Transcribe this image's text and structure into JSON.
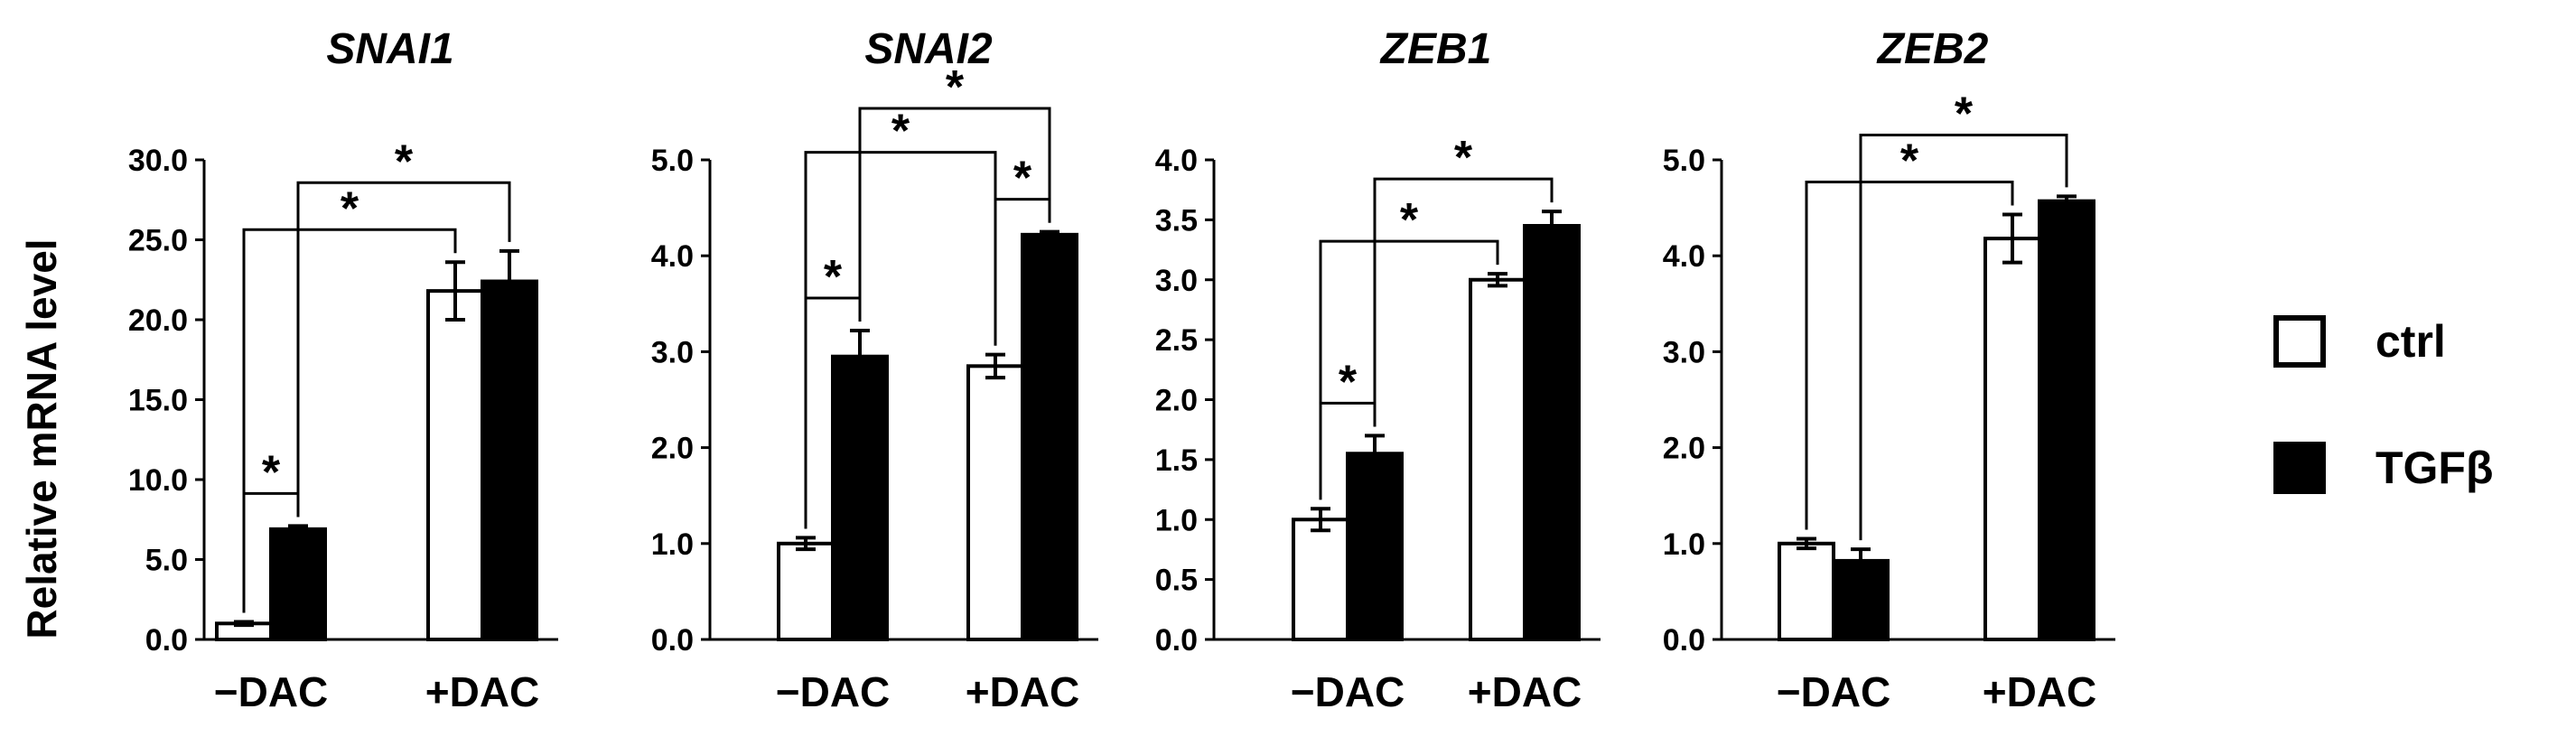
{
  "chart_data": [
    {
      "type": "bar",
      "title": "SNAI1",
      "ylabel": "Relative mRNA level",
      "xlabel": "",
      "ylim": [
        0,
        30
      ],
      "yticks": [
        "0.0",
        "5.0",
        "10.0",
        "15.0",
        "20.0",
        "25.0",
        "30.0"
      ],
      "categories": [
        "−DAC",
        "+DAC"
      ],
      "series": [
        {
          "name": "ctrl",
          "values": [
            1.0,
            21.8
          ],
          "errors": [
            0.1,
            1.8
          ]
        },
        {
          "name": "TGFβ",
          "values": [
            6.9,
            22.4
          ],
          "errors": [
            0.2,
            1.9
          ]
        }
      ],
      "significance": [
        {
          "from": [
            0,
            0
          ],
          "to": [
            0,
            1
          ],
          "label": "*"
        },
        {
          "from": [
            0,
            0
          ],
          "to": [
            1,
            0
          ],
          "label": "*"
        },
        {
          "from": [
            0,
            1
          ],
          "to": [
            1,
            1
          ],
          "label": "*"
        }
      ]
    },
    {
      "type": "bar",
      "title": "SNAI2",
      "ylim": [
        0,
        5
      ],
      "yticks": [
        "0.0",
        "1.0",
        "2.0",
        "3.0",
        "4.0",
        "5.0"
      ],
      "categories": [
        "−DAC",
        "+DAC"
      ],
      "series": [
        {
          "name": "ctrl",
          "values": [
            1.0,
            2.85
          ],
          "errors": [
            0.06,
            0.12
          ]
        },
        {
          "name": "TGFβ",
          "values": [
            2.95,
            4.22
          ],
          "errors": [
            0.27,
            0.03
          ]
        }
      ],
      "significance": [
        {
          "from": [
            0,
            0
          ],
          "to": [
            0,
            1
          ],
          "label": "*"
        },
        {
          "from": [
            0,
            0
          ],
          "to": [
            1,
            0
          ],
          "label": "*"
        },
        {
          "from": [
            1,
            0
          ],
          "to": [
            1,
            1
          ],
          "label": "*"
        },
        {
          "from": [
            0,
            1
          ],
          "to": [
            1,
            1
          ],
          "label": "*"
        }
      ]
    },
    {
      "type": "bar",
      "title": "ZEB1",
      "ylim": [
        0,
        4
      ],
      "yticks": [
        "0.0",
        "0.5",
        "1.0",
        "1.5",
        "2.0",
        "2.5",
        "3.0",
        "3.5",
        "4.0"
      ],
      "categories": [
        "−DAC",
        "+DAC"
      ],
      "series": [
        {
          "name": "ctrl",
          "values": [
            1.0,
            3.0
          ],
          "errors": [
            0.09,
            0.05
          ]
        },
        {
          "name": "TGFβ",
          "values": [
            1.55,
            3.45
          ],
          "errors": [
            0.15,
            0.12
          ]
        }
      ],
      "significance": [
        {
          "from": [
            0,
            0
          ],
          "to": [
            0,
            1
          ],
          "label": "*"
        },
        {
          "from": [
            0,
            0
          ],
          "to": [
            1,
            0
          ],
          "label": "*"
        },
        {
          "from": [
            0,
            1
          ],
          "to": [
            1,
            1
          ],
          "label": "*"
        }
      ]
    },
    {
      "type": "bar",
      "title": "ZEB2",
      "ylim": [
        0,
        5
      ],
      "yticks": [
        "0.0",
        "1.0",
        "2.0",
        "3.0",
        "4.0",
        "5.0"
      ],
      "categories": [
        "−DAC",
        "+DAC"
      ],
      "series": [
        {
          "name": "ctrl",
          "values": [
            1.0,
            4.18
          ],
          "errors": [
            0.05,
            0.25
          ]
        },
        {
          "name": "TGFβ",
          "values": [
            0.82,
            4.57
          ],
          "errors": [
            0.12,
            0.05
          ]
        }
      ],
      "significance": [
        {
          "from": [
            0,
            0
          ],
          "to": [
            1,
            0
          ],
          "label": "*"
        },
        {
          "from": [
            0,
            1
          ],
          "to": [
            1,
            1
          ],
          "label": "*"
        }
      ]
    }
  ],
  "legend": {
    "position": "right",
    "items": [
      {
        "label": "ctrl",
        "color": "#ffffff"
      },
      {
        "label": "TGFβ",
        "color": "#000000"
      }
    ]
  }
}
